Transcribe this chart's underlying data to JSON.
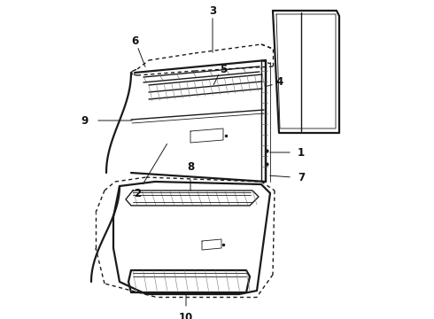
{
  "bg_color": "#ffffff",
  "line_color": "#1a1a1a",
  "label_color": "#111111",
  "lw_thick": 1.6,
  "lw_med": 1.0,
  "lw_thin": 0.6,
  "label_fontsize": 8.5
}
